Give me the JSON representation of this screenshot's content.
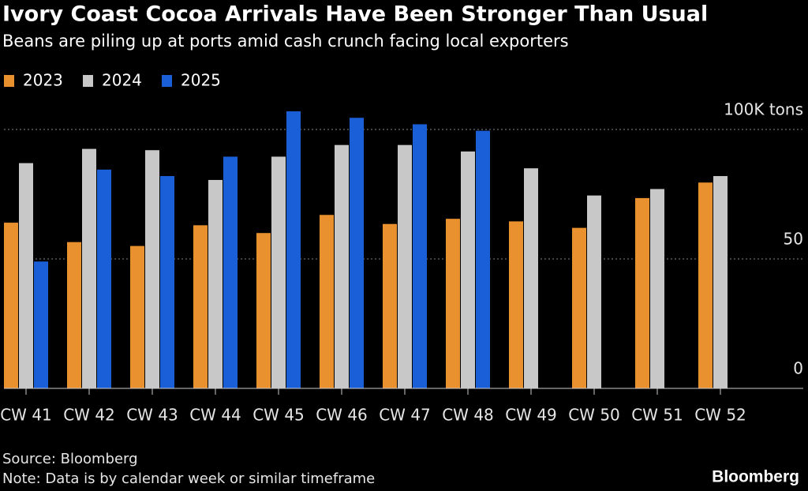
{
  "chart_data": {
    "type": "bar",
    "title": "Ivory Coast Cocoa Arrivals Have Been Stronger Than Usual",
    "subtitle": "Beans are piling up at ports amid cash crunch facing local exporters",
    "categories": [
      "CW 41",
      "CW 42",
      "CW 43",
      "CW 44",
      "CW 45",
      "CW 46",
      "CW 47",
      "CW 48",
      "CW 49",
      "CW 50",
      "CW 51",
      "CW 52"
    ],
    "series": [
      {
        "name": "2023",
        "color": "#e8912e",
        "values": [
          64,
          56.5,
          55,
          63,
          60,
          67,
          63.5,
          65.5,
          64.5,
          62,
          73.5,
          79.5
        ]
      },
      {
        "name": "2024",
        "color": "#c8c8c8",
        "values": [
          87,
          92.5,
          92,
          80.5,
          89.5,
          94,
          94,
          91.5,
          85,
          74.5,
          77,
          82
        ]
      },
      {
        "name": "2025",
        "color": "#1b5fd8",
        "values": [
          49,
          84.5,
          82,
          89.5,
          107,
          104.5,
          102,
          99.5,
          null,
          null,
          null,
          null
        ]
      }
    ],
    "ylim": [
      0,
      110
    ],
    "yticks": [
      0,
      50,
      {
        "value": 100,
        "label": "100K tons"
      }
    ],
    "grid": true,
    "source": "Source: Bloomberg",
    "note": "Note: Data is by calendar week or similar timeframe",
    "brand": "Bloomberg"
  }
}
